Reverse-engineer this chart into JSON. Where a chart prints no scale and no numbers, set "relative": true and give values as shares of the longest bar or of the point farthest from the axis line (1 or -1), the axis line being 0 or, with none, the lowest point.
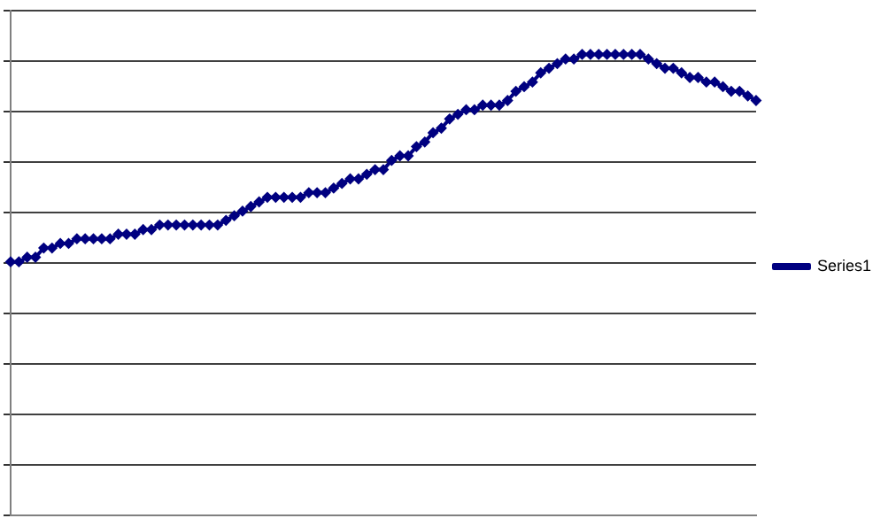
{
  "chart_data": {
    "type": "line",
    "relative": true,
    "grid": "y",
    "legend": "right",
    "marker": "diamond",
    "line_style": "solid",
    "categories": [
      null,
      null,
      null,
      null,
      null,
      null,
      null,
      null,
      null,
      null,
      null,
      null,
      null,
      null,
      null,
      null,
      null,
      null,
      null,
      null,
      null,
      null,
      null,
      null,
      null,
      null,
      null,
      null,
      null,
      null,
      null,
      null,
      null,
      null,
      null,
      null,
      null,
      null,
      null,
      null,
      null,
      null,
      null,
      null,
      null,
      null,
      null,
      null,
      null,
      null,
      null,
      null,
      null,
      null,
      null,
      null,
      null,
      null,
      null,
      null,
      null,
      null,
      null,
      null,
      null,
      null,
      null,
      null,
      null,
      null,
      null,
      null,
      null,
      null,
      null,
      null,
      null,
      null,
      null,
      null,
      null,
      null,
      null,
      null,
      null,
      null,
      null,
      null,
      null,
      null,
      null
    ],
    "series": [
      {
        "name": "Series1",
        "color": "#000080",
        "values": [
          0.55,
          0.55,
          0.56,
          0.56,
          0.58,
          0.58,
          0.59,
          0.59,
          0.6,
          0.6,
          0.6,
          0.6,
          0.6,
          0.61,
          0.61,
          0.61,
          0.62,
          0.62,
          0.63,
          0.63,
          0.63,
          0.63,
          0.63,
          0.63,
          0.63,
          0.63,
          0.64,
          0.65,
          0.66,
          0.67,
          0.68,
          0.69,
          0.69,
          0.69,
          0.69,
          0.69,
          0.7,
          0.7,
          0.7,
          0.71,
          0.72,
          0.73,
          0.73,
          0.74,
          0.75,
          0.75,
          0.77,
          0.78,
          0.78,
          0.8,
          0.81,
          0.83,
          0.84,
          0.86,
          0.87,
          0.88,
          0.88,
          0.89,
          0.89,
          0.89,
          0.9,
          0.92,
          0.93,
          0.94,
          0.96,
          0.97,
          0.98,
          0.99,
          0.99,
          1,
          1,
          1,
          1,
          1,
          1,
          1,
          1,
          0.99,
          0.98,
          0.97,
          0.97,
          0.96,
          0.95,
          0.95,
          0.94,
          0.94,
          0.93,
          0.92,
          0.92,
          0.91,
          0.9
        ]
      }
    ]
  }
}
